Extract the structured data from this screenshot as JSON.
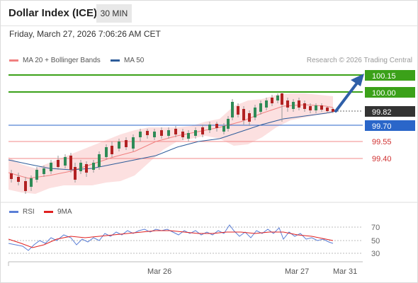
{
  "header": {
    "title": "Dollar Index (ICE)",
    "timeframe": "30 MIN"
  },
  "datetime": "Friday, March 27, 2026 7:06:26 AM CET",
  "legend": {
    "ma20": {
      "label": "MA 20 + Bollinger Bands",
      "color": "#f08080"
    },
    "ma50": {
      "label": "MA 50",
      "color": "#2e5c9a"
    },
    "credit": "Research © 2026 Trading Central"
  },
  "indicator_legend": {
    "rsi": {
      "label": "RSI",
      "color": "#5b7fd6"
    },
    "ma9": {
      "label": "9MA",
      "color": "#e02020"
    }
  },
  "levels": [
    {
      "value": "100.15",
      "kind": "resistance",
      "color": "#3ba119"
    },
    {
      "value": "100.00",
      "kind": "resistance",
      "color": "#3ba119"
    },
    {
      "value": "99.82",
      "kind": "current",
      "color": "#333333"
    },
    {
      "value": "99.70",
      "kind": "pivot",
      "color": "#2a66c9"
    },
    {
      "value": "99.55",
      "kind": "support",
      "color": "#e05050"
    },
    {
      "value": "99.40",
      "kind": "support",
      "color": "#e05050"
    }
  ],
  "rsi_ticks": [
    "70",
    "50",
    "30"
  ],
  "x_ticks": [
    "Mar 26",
    "Mar 27",
    "Mar 31"
  ]
}
